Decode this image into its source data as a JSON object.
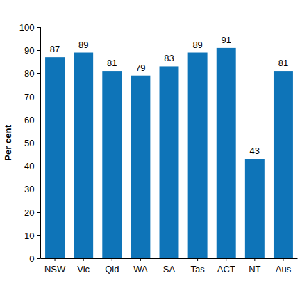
{
  "chart_data": {
    "type": "bar",
    "y_label": "Per cent",
    "categories": [
      "NSW",
      "Vic",
      "Qld",
      "WA",
      "SA",
      "Tas",
      "ACT",
      "NT",
      "Aus"
    ],
    "values": [
      87,
      89,
      81,
      79,
      83,
      89,
      91,
      43,
      81
    ],
    "color": "#0e74b8",
    "ylim": [
      0,
      100
    ],
    "yticks": [
      0,
      10,
      20,
      30,
      40,
      50,
      60,
      70,
      80,
      90,
      100
    ],
    "grid": false,
    "data_labels": true
  }
}
